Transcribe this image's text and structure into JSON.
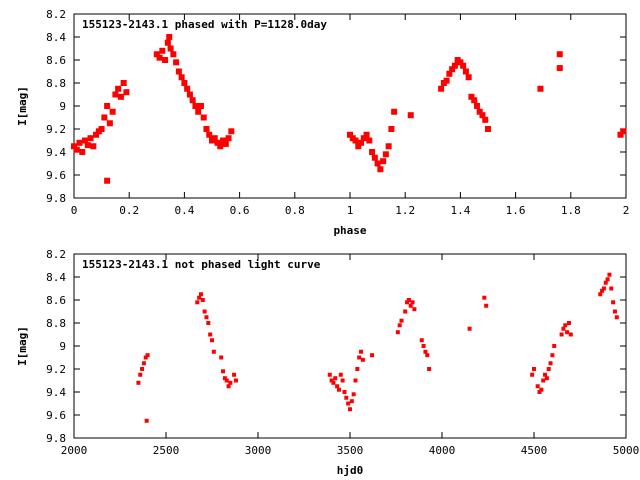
{
  "chart_data": [
    {
      "type": "scatter",
      "title": "155123-2143.1 phased with P=1128.0day",
      "xlabel": "phase",
      "ylabel": "I[mag]",
      "xlim": [
        0,
        2
      ],
      "ylim": [
        9.8,
        8.2
      ],
      "y_inverted": true,
      "xticks": [
        "0",
        "0.2",
        "0.4",
        "0.6",
        "0.8",
        "1",
        "1.2",
        "1.4",
        "1.6",
        "1.8",
        "2"
      ],
      "yticks": [
        "8.2",
        "8.4",
        "8.6",
        "8.8",
        "9",
        "9.2",
        "9.4",
        "9.6",
        "9.8"
      ],
      "grid": false,
      "marker_color": "#ff0000",
      "x": [
        0.0,
        0.01,
        0.02,
        0.03,
        0.04,
        0.05,
        0.06,
        0.07,
        0.08,
        0.09,
        0.1,
        0.11,
        0.12,
        0.13,
        0.14,
        0.15,
        0.16,
        0.17,
        0.18,
        0.19,
        0.12,
        0.3,
        0.31,
        0.32,
        0.33,
        0.34,
        0.345,
        0.35,
        0.36,
        0.37,
        0.38,
        0.39,
        0.4,
        0.41,
        0.42,
        0.43,
        0.44,
        0.45,
        0.46,
        0.47,
        0.48,
        0.49,
        0.5,
        0.51,
        0.52,
        0.53,
        0.54,
        0.55,
        0.56,
        0.57,
        1.0,
        1.01,
        1.02,
        1.03,
        1.04,
        1.05,
        1.06,
        1.07,
        1.08,
        1.09,
        1.1,
        1.11,
        1.12,
        1.13,
        1.14,
        1.15,
        1.16,
        1.22,
        1.33,
        1.34,
        1.35,
        1.36,
        1.37,
        1.38,
        1.39,
        1.4,
        1.41,
        1.42,
        1.43,
        1.44,
        1.45,
        1.46,
        1.47,
        1.48,
        1.49,
        1.5,
        1.69,
        1.76,
        1.76,
        1.98,
        1.99
      ],
      "y": [
        9.35,
        9.38,
        9.32,
        9.4,
        9.3,
        9.34,
        9.28,
        9.35,
        9.25,
        9.22,
        9.2,
        9.1,
        9.0,
        9.15,
        9.05,
        8.9,
        8.85,
        8.92,
        8.8,
        8.88,
        9.65,
        8.55,
        8.58,
        8.52,
        8.6,
        8.45,
        8.4,
        8.5,
        8.55,
        8.62,
        8.7,
        8.75,
        8.8,
        8.85,
        8.9,
        8.95,
        9.0,
        9.05,
        9.0,
        9.1,
        9.2,
        9.25,
        9.3,
        9.28,
        9.32,
        9.35,
        9.3,
        9.33,
        9.28,
        9.22,
        9.25,
        9.28,
        9.3,
        9.35,
        9.32,
        9.28,
        9.25,
        9.3,
        9.4,
        9.45,
        9.5,
        9.55,
        9.48,
        9.42,
        9.35,
        9.2,
        9.05,
        9.08,
        8.85,
        8.8,
        8.78,
        8.72,
        8.68,
        8.65,
        8.6,
        8.62,
        8.65,
        8.7,
        8.75,
        8.92,
        8.95,
        9.0,
        9.05,
        9.08,
        9.12,
        9.2,
        8.85,
        8.55,
        8.67,
        9.25,
        9.22
      ]
    },
    {
      "type": "scatter",
      "title": "155123-2143.1 not phased light curve",
      "xlabel": "hjd0",
      "ylabel": "I[mag]",
      "xlim": [
        2000,
        5000
      ],
      "ylim": [
        9.8,
        8.2
      ],
      "y_inverted": true,
      "xticks": [
        "2000",
        "2500",
        "3000",
        "3500",
        "4000",
        "4500",
        "5000"
      ],
      "yticks": [
        "8.2",
        "8.4",
        "8.6",
        "8.8",
        "9",
        "9.2",
        "9.4",
        "9.6",
        "9.8"
      ],
      "grid": false,
      "marker_color": "#ff0000",
      "x": [
        2350,
        2360,
        2370,
        2380,
        2390,
        2400,
        2395,
        2670,
        2680,
        2690,
        2700,
        2710,
        2720,
        2730,
        2740,
        2750,
        2760,
        2800,
        2810,
        2820,
        2830,
        2840,
        2850,
        2870,
        2880,
        3390,
        3400,
        3410,
        3420,
        3430,
        3440,
        3450,
        3460,
        3470,
        3480,
        3490,
        3500,
        3510,
        3520,
        3530,
        3540,
        3550,
        3560,
        3570,
        3620,
        3760,
        3770,
        3780,
        3800,
        3810,
        3820,
        3830,
        3840,
        3850,
        3890,
        3900,
        3910,
        3920,
        3930,
        4150,
        4230,
        4240,
        4490,
        4500,
        4520,
        4530,
        4540,
        4550,
        4560,
        4570,
        4580,
        4590,
        4600,
        4610,
        4650,
        4660,
        4670,
        4680,
        4690,
        4700,
        4860,
        4870,
        4880,
        4890,
        4900,
        4910,
        4920,
        4930,
        4940,
        4950
      ],
      "y": [
        9.32,
        9.25,
        9.2,
        9.15,
        9.1,
        9.08,
        9.65,
        8.62,
        8.58,
        8.55,
        8.6,
        8.7,
        8.75,
        8.8,
        8.9,
        8.95,
        9.05,
        9.1,
        9.22,
        9.28,
        9.3,
        9.35,
        9.32,
        9.25,
        9.3,
        9.25,
        9.3,
        9.32,
        9.28,
        9.35,
        9.38,
        9.25,
        9.3,
        9.4,
        9.45,
        9.5,
        9.55,
        9.48,
        9.42,
        9.3,
        9.2,
        9.1,
        9.05,
        9.12,
        9.08,
        8.88,
        8.82,
        8.78,
        8.7,
        8.62,
        8.6,
        8.65,
        8.62,
        8.68,
        8.95,
        9.0,
        9.05,
        9.08,
        9.2,
        8.85,
        8.58,
        8.65,
        9.25,
        9.2,
        9.35,
        9.4,
        9.38,
        9.3,
        9.25,
        9.28,
        9.2,
        9.15,
        9.08,
        9.0,
        8.9,
        8.85,
        8.82,
        8.88,
        8.8,
        8.9,
        8.55,
        8.52,
        8.5,
        8.45,
        8.42,
        8.38,
        8.5,
        8.62,
        8.7,
        8.75
      ]
    }
  ]
}
